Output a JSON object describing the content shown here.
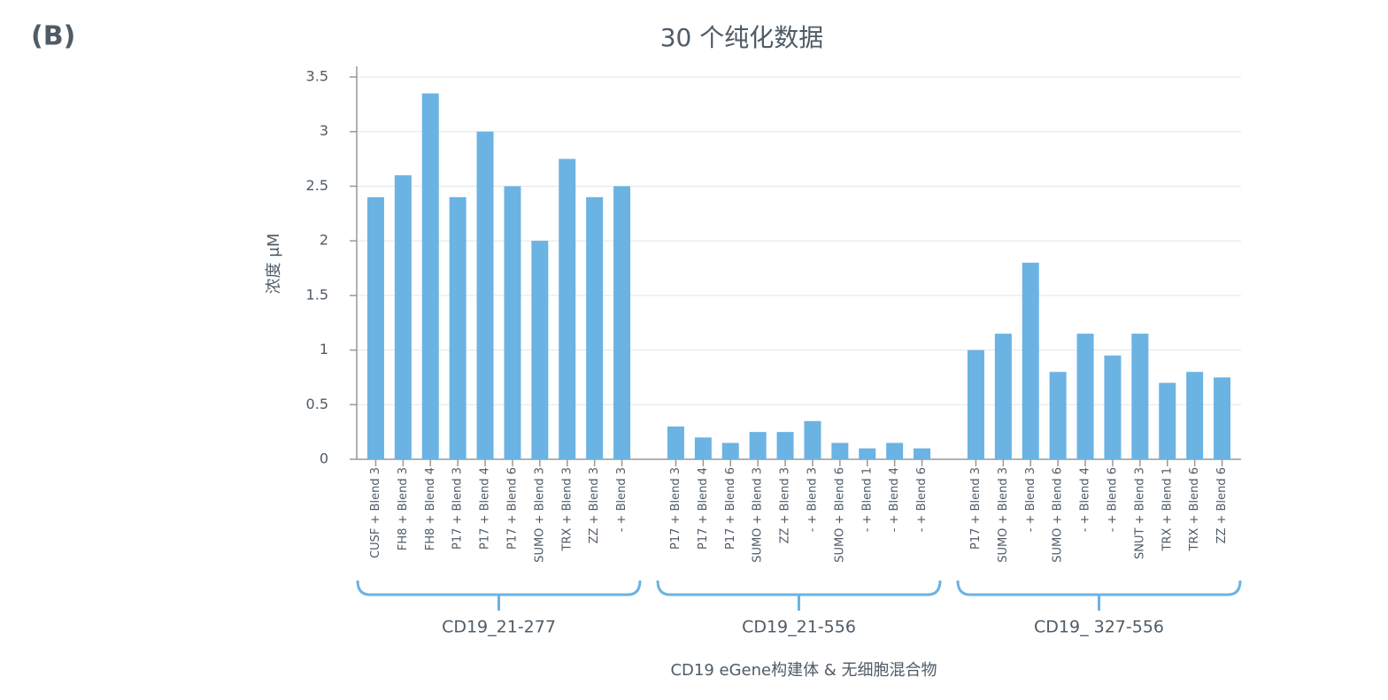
{
  "panel_label": "(B)",
  "chart_data": {
    "type": "bar",
    "title": "30 个纯化数据",
    "y_label": "浓度 μM",
    "x_label": "CD19 eGene构建体 & 无细胞混合物",
    "color": "#6bb3e3",
    "grid": true,
    "ylim": [
      0,
      3.5
    ],
    "yticks": [
      0,
      0.5,
      1,
      1.5,
      2,
      2.5,
      3,
      3.5
    ],
    "groups": [
      {
        "label": "CD19_21-277",
        "categories": [
          "CUSF + Blend 3",
          "FH8 + Blend 3",
          "FH8 + Blend 4",
          "P17 + Blend 3",
          "P17 + Blend 4",
          "P17 + Blend 6",
          "SUMO + Blend 3",
          "TRX + Blend 3",
          "ZZ + Blend 3",
          "- + Blend 3"
        ],
        "values": [
          2.4,
          2.6,
          3.35,
          2.4,
          3.0,
          2.5,
          2.0,
          2.75,
          2.4,
          2.5
        ]
      },
      {
        "label": "CD19_21-556",
        "categories": [
          "P17 + Blend 3",
          "P17 + Blend 4",
          "P17 + Blend 6",
          "SUMO + Blend 3",
          "ZZ + Blend 3",
          "- + Blend 3",
          "SUMO + Blend 6",
          "- + Blend 1",
          "- + Blend 4",
          "- + Blend 6"
        ],
        "values": [
          0.3,
          0.2,
          0.15,
          0.25,
          0.25,
          0.35,
          0.15,
          0.1,
          0.15,
          0.1
        ]
      },
      {
        "label": "CD19_ 327-556",
        "categories": [
          "P17 + Blend 3",
          "SUMO + Blend 3",
          "- + Blend 3",
          "SUMO + Blend 6",
          "- + Blend 4",
          "- + Blend 6",
          "SNUT + Blend 3",
          "TRX + Blend 1",
          "TRX + Blend 6",
          "ZZ + Blend 6"
        ],
        "values": [
          1.0,
          1.15,
          1.8,
          0.8,
          1.15,
          0.95,
          1.15,
          0.7,
          0.8,
          0.75
        ]
      }
    ]
  }
}
